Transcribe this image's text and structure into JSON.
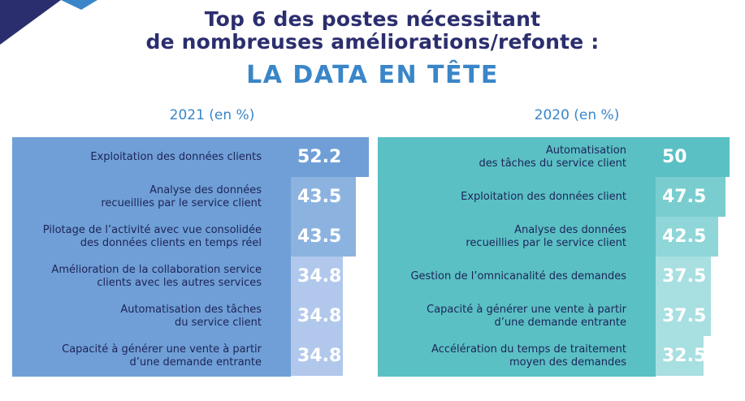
{
  "header": {
    "line1": "Top 6 des postes nécessitant",
    "line2": "de nombreuses améliorations/refonte :",
    "main": "LA DATA EN TÊTE"
  },
  "colors": {
    "navy": "#2b2e6e",
    "accent_blue": "#3a86c8",
    "panel_2021": "#6f9fd6",
    "panel_2020": "#5ac0c4",
    "bars_2021": [
      "#6f9fd6",
      "#8cb3e0",
      "#8cb3e0",
      "#b1c8ec",
      "#b1c8ec",
      "#b1c8ec"
    ],
    "bars_2020": [
      "#5ac0c4",
      "#79cdcf",
      "#8fd6d8",
      "#a8dfe1",
      "#a8dfe1",
      "#a8dfe1"
    ]
  },
  "chart_data": [
    {
      "type": "bar",
      "title": "2021 (en %)",
      "categories": [
        "Exploitation des données clients",
        "Analyse des données\nrecueillies par le service client",
        "Pilotage de l’activité avec vue consolidée\ndes données clients en temps réel",
        "Amélioration de la collaboration service\nclients avec les autres services",
        "Automatisation des tâches\ndu service client",
        "Capacité à générer une vente à partir\nd’une demande entrante"
      ],
      "values": [
        52.2,
        43.5,
        43.5,
        34.8,
        34.8,
        34.8
      ],
      "value_labels": [
        "52.2",
        "43.5",
        "43.5",
        "34.8",
        "34.8",
        "34.8"
      ]
    },
    {
      "type": "bar",
      "title": "2020 (en %)",
      "categories": [
        "Automatisation\ndes tâches du service client",
        "Exploitation des données client",
        "Analyse des données\nrecueillies par le service client",
        "Gestion de l’omnicanalité des demandes",
        "Capacité à générer une vente à partir\nd’une demande entrante",
        "Accélération du temps de traitement\nmoyen des demandes"
      ],
      "values": [
        50,
        47.5,
        42.5,
        37.5,
        37.5,
        32.5
      ],
      "value_labels": [
        "50",
        "47.5",
        "42.5",
        "37.5",
        "37.5",
        "32.5"
      ]
    }
  ]
}
